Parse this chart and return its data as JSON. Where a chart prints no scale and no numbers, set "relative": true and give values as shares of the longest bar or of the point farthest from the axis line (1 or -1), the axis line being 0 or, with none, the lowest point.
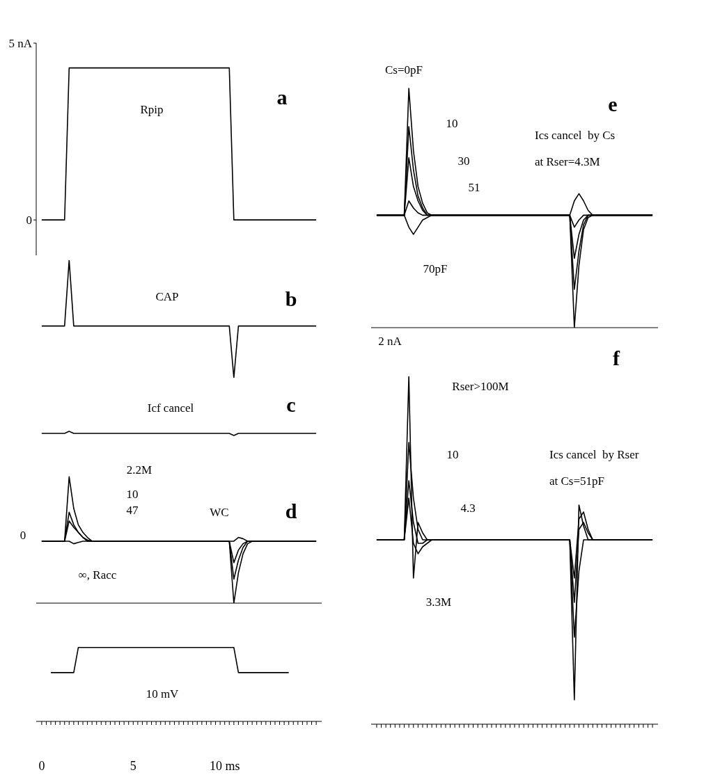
{
  "chart_data": [
    {
      "type": "line",
      "title": "a",
      "subtitle": "Rpip",
      "categories": [
        null,
        null,
        null,
        null,
        null,
        null,
        null,
        null,
        null,
        null,
        null,
        null,
        null,
        null,
        null,
        null,
        null,
        null,
        null,
        null,
        null,
        null,
        null,
        null,
        null,
        null,
        null,
        null,
        null,
        null,
        null,
        null,
        null,
        null,
        null,
        null,
        null,
        null,
        null,
        null,
        null,
        null,
        null,
        null,
        null,
        null,
        null,
        null,
        null,
        null,
        null,
        null,
        null,
        null,
        null,
        null,
        null,
        null,
        null,
        null,
        null
      ],
      "values": [
        0,
        0,
        0,
        0,
        0,
        0,
        4.3,
        4.3,
        4.3,
        4.3,
        4.3,
        4.3,
        4.3,
        4.3,
        4.3,
        4.3,
        4.3,
        4.3,
        4.3,
        4.3,
        4.3,
        4.3,
        4.3,
        4.3,
        4.3,
        4.3,
        4.3,
        4.3,
        4.3,
        4.3,
        4.3,
        4.3,
        4.3,
        4.3,
        4.3,
        4.3,
        4.3,
        4.3,
        4.3,
        4.3,
        4.3,
        4.3,
        0,
        0,
        0,
        0,
        0,
        0,
        0,
        0,
        0,
        0,
        0,
        0,
        0,
        0,
        0,
        0,
        0,
        0,
        0
      ],
      "color": "#000000",
      "ylim": [
        -1,
        5
      ],
      "yticks": [
        {
          "value": 0,
          "label": "0"
        },
        {
          "value": 5,
          "label": "5 nA"
        }
      ],
      "tick_labels": "y",
      "grid": false,
      "legend": false
    },
    {
      "type": "line",
      "title": "b",
      "subtitle": "CAP",
      "relative": true,
      "categories": [
        null,
        null,
        null,
        null,
        null,
        null,
        null,
        null,
        null,
        null,
        null,
        null,
        null,
        null,
        null,
        null,
        null,
        null,
        null,
        null,
        null,
        null,
        null,
        null,
        null,
        null,
        null,
        null,
        null,
        null,
        null,
        null,
        null,
        null,
        null,
        null,
        null,
        null,
        null,
        null,
        null,
        null,
        null,
        null,
        null,
        null,
        null,
        null,
        null,
        null,
        null,
        null,
        null,
        null,
        null,
        null,
        null,
        null,
        null,
        null,
        null
      ],
      "values": [
        0.44,
        0.44,
        0.44,
        0.44,
        0.44,
        0.44,
        1,
        0.44,
        0.44,
        0.44,
        0.44,
        0.44,
        0.44,
        0.44,
        0.44,
        0.44,
        0.44,
        0.44,
        0.44,
        0.44,
        0.44,
        0.44,
        0.44,
        0.44,
        0.44,
        0.44,
        0.44,
        0.44,
        0.44,
        0.44,
        0.44,
        0.44,
        0.44,
        0.44,
        0.44,
        0.44,
        0.44,
        0.44,
        0.44,
        0.44,
        0.44,
        0.44,
        0,
        0.44,
        0.44,
        0.44,
        0.44,
        0.44,
        0.44,
        0.44,
        0.44,
        0.44,
        0.44,
        0.44,
        0.44,
        0.44,
        0.44,
        0.44,
        0.44,
        0.44,
        0.44
      ],
      "color": "#000000",
      "tick_labels": false,
      "grid": false,
      "legend": false
    },
    {
      "type": "line",
      "title": "c",
      "subtitle": "Icf cancel",
      "relative": true,
      "categories": [
        null,
        null,
        null,
        null,
        null,
        null,
        null,
        null,
        null,
        null,
        null,
        null,
        null,
        null,
        null,
        null,
        null,
        null,
        null,
        null,
        null,
        null,
        null,
        null,
        null,
        null,
        null,
        null,
        null,
        null,
        null,
        null,
        null,
        null,
        null,
        null,
        null,
        null,
        null,
        null,
        null,
        null,
        null,
        null,
        null,
        null,
        null,
        null,
        null,
        null,
        null,
        null,
        null,
        null,
        null,
        null,
        null,
        null,
        null,
        null,
        null
      ],
      "values": [
        0.5,
        0.5,
        0.5,
        0.5,
        0.5,
        0.5,
        1,
        0.5,
        0.5,
        0.5,
        0.5,
        0.5,
        0.5,
        0.5,
        0.5,
        0.5,
        0.5,
        0.5,
        0.5,
        0.5,
        0.5,
        0.5,
        0.5,
        0.5,
        0.5,
        0.5,
        0.5,
        0.5,
        0.5,
        0.5,
        0.5,
        0.5,
        0.5,
        0.5,
        0.5,
        0.5,
        0.5,
        0.5,
        0.5,
        0.5,
        0.5,
        0.5,
        0,
        0.5,
        0.5,
        0.5,
        0.5,
        0.5,
        0.5,
        0.5,
        0.5,
        0.5,
        0.5,
        0.5,
        0.5,
        0.5,
        0.5,
        0.5,
        0.5,
        0.5,
        0.5
      ],
      "color": "#000000",
      "tick_labels": false,
      "grid": false,
      "legend": false
    },
    {
      "type": "line",
      "title": "d",
      "subtitle": "WC",
      "relative": true,
      "tick_labels": false,
      "grid": false,
      "legend": false,
      "categories": [
        null,
        null,
        null,
        null,
        null,
        null,
        null,
        null,
        null,
        null,
        null,
        null,
        null,
        null,
        null,
        null,
        null,
        null,
        null,
        null,
        null,
        null,
        null,
        null,
        null,
        null,
        null,
        null,
        null,
        null,
        null,
        null,
        null,
        null,
        null,
        null,
        null,
        null,
        null,
        null,
        null,
        null,
        null,
        null,
        null,
        null,
        null,
        null,
        null,
        null,
        null,
        null,
        null,
        null,
        null,
        null,
        null,
        null,
        null,
        null,
        null
      ],
      "series": [
        {
          "color": "#000000",
          "values": [
            0.49,
            0.49,
            0.49,
            0.49,
            0.49,
            0.49,
            1,
            0.75,
            0.62,
            0.56,
            0.52,
            0.49,
            0.49,
            0.49,
            0.49,
            0.49,
            0.49,
            0.49,
            0.49,
            0.49,
            0.49,
            0.49,
            0.49,
            0.49,
            0.49,
            0.49,
            0.49,
            0.49,
            0.49,
            0.49,
            0.49,
            0.49,
            0.49,
            0.49,
            0.49,
            0.49,
            0.49,
            0.49,
            0.49,
            0.49,
            0.49,
            0.49,
            0,
            0.24,
            0.39,
            0.47,
            0.49,
            0.49,
            0.49,
            0.49,
            0.49,
            0.49,
            0.49,
            0.49,
            0.49,
            0.49,
            0.49,
            0.49,
            0.49,
            0.49,
            0.49
          ]
        },
        {
          "color": "#000000",
          "values": [
            0.49,
            0.49,
            0.49,
            0.49,
            0.49,
            0.49,
            0.72,
            0.62,
            0.56,
            0.52,
            0.49,
            0.49,
            0.49,
            0.49,
            0.49,
            0.49,
            0.49,
            0.49,
            0.49,
            0.49,
            0.49,
            0.49,
            0.49,
            0.49,
            0.49,
            0.49,
            0.49,
            0.49,
            0.49,
            0.49,
            0.49,
            0.49,
            0.49,
            0.49,
            0.49,
            0.49,
            0.49,
            0.49,
            0.49,
            0.49,
            0.49,
            0.49,
            0.19,
            0.34,
            0.44,
            0.49,
            0.49,
            0.49,
            0.49,
            0.49,
            0.49,
            0.49,
            0.49,
            0.49,
            0.49,
            0.49,
            0.49,
            0.49,
            0.49,
            0.49,
            0.49
          ]
        },
        {
          "color": "#000000",
          "values": [
            0.49,
            0.49,
            0.49,
            0.49,
            0.49,
            0.49,
            0.65,
            0.6,
            0.56,
            0.52,
            0.5,
            0.49,
            0.49,
            0.49,
            0.49,
            0.49,
            0.49,
            0.49,
            0.49,
            0.49,
            0.49,
            0.49,
            0.49,
            0.49,
            0.49,
            0.49,
            0.49,
            0.49,
            0.49,
            0.49,
            0.49,
            0.49,
            0.49,
            0.49,
            0.49,
            0.49,
            0.49,
            0.49,
            0.49,
            0.49,
            0.49,
            0.49,
            0.32,
            0.42,
            0.47,
            0.49,
            0.49,
            0.49,
            0.49,
            0.49,
            0.49,
            0.49,
            0.49,
            0.49,
            0.49,
            0.49,
            0.49,
            0.49,
            0.49,
            0.49,
            0.49
          ]
        },
        {
          "color": "#000000",
          "values": [
            0.49,
            0.49,
            0.49,
            0.49,
            0.49,
            0.49,
            0.49,
            0.47,
            0.48,
            0.49,
            0.49,
            0.49,
            0.49,
            0.49,
            0.49,
            0.49,
            0.49,
            0.49,
            0.49,
            0.49,
            0.49,
            0.49,
            0.49,
            0.49,
            0.49,
            0.49,
            0.49,
            0.49,
            0.49,
            0.49,
            0.49,
            0.49,
            0.49,
            0.49,
            0.49,
            0.49,
            0.49,
            0.49,
            0.49,
            0.49,
            0.49,
            0.49,
            0.49,
            0.52,
            0.51,
            0.49,
            0.49,
            0.49,
            0.49,
            0.49,
            0.49,
            0.49,
            0.49,
            0.49,
            0.49,
            0.49,
            0.49,
            0.49,
            0.49,
            0.49,
            0.49
          ]
        }
      ],
      "annotations": [
        "0",
        "2.2M",
        "10",
        "47",
        "∞, Racc"
      ]
    },
    {
      "type": "line",
      "relative": true,
      "categories": [
        "0",
        null,
        null,
        null,
        null,
        null,
        null,
        null,
        null,
        null,
        null,
        null,
        null,
        null,
        null,
        null,
        null,
        null,
        null,
        null,
        "5",
        null,
        null,
        null,
        null,
        null,
        null,
        null,
        null,
        null,
        null,
        null,
        null,
        null,
        null,
        null,
        null,
        null,
        null,
        null,
        "10 ms",
        null,
        null,
        null,
        null,
        null,
        null,
        null,
        null,
        null,
        null,
        null,
        null,
        null,
        null,
        null,
        null,
        null,
        null,
        null,
        null
      ],
      "values": [
        null,
        null,
        0.66,
        0.66,
        0.66,
        0.66,
        0.66,
        0.66,
        1,
        1,
        1,
        1,
        1,
        1,
        1,
        1,
        1,
        1,
        1,
        1,
        1,
        1,
        1,
        1,
        1,
        1,
        1,
        1,
        1,
        1,
        1,
        1,
        1,
        1,
        1,
        1,
        1,
        1,
        1,
        1,
        1,
        1,
        1,
        0.66,
        0.66,
        0.66,
        0.66,
        0.66,
        0.66,
        0.66,
        0.66,
        0.66,
        0.66,
        0.66,
        0.66,
        null,
        null,
        null,
        null,
        null,
        null
      ],
      "color": "#000000",
      "tick_labels": "x",
      "grid": false,
      "legend": false,
      "annotations": [
        "10 mV"
      ]
    },
    {
      "type": "line",
      "title": "e",
      "relative": true,
      "tick_labels": false,
      "grid": false,
      "legend": false,
      "categories": [
        null,
        null,
        null,
        null,
        null,
        null,
        null,
        null,
        null,
        null,
        null,
        null,
        null,
        null,
        null,
        null,
        null,
        null,
        null,
        null,
        null,
        null,
        null,
        null,
        null,
        null,
        null,
        null,
        null,
        null,
        null,
        null,
        null,
        null,
        null,
        null,
        null,
        null,
        null,
        null,
        null,
        null,
        null,
        null,
        null,
        null,
        null,
        null,
        null,
        null,
        null,
        null,
        null,
        null,
        null,
        null,
        null,
        null,
        null,
        null,
        null
      ],
      "series": [
        {
          "color": "#000000",
          "values": [
            0.47,
            0.47,
            0.47,
            0.47,
            0.47,
            0.47,
            0.47,
            1,
            0.74,
            0.59,
            0.52,
            0.48,
            0.47,
            0.47,
            0.47,
            0.47,
            0.47,
            0.47,
            0.47,
            0.47,
            0.47,
            0.47,
            0.47,
            0.47,
            0.47,
            0.47,
            0.47,
            0.47,
            0.47,
            0.47,
            0.47,
            0.47,
            0.47,
            0.47,
            0.47,
            0.47,
            0.47,
            0.47,
            0.47,
            0.47,
            0.47,
            0.47,
            0.47,
            0,
            0.26,
            0.41,
            0.46,
            0.47,
            0.47,
            0.47,
            0.47,
            0.47,
            0.47,
            0.47,
            0.47,
            0.47,
            0.47,
            0.47,
            0.47,
            0.47,
            0.47
          ]
        },
        {
          "color": "#000000",
          "values": [
            0.47,
            0.47,
            0.47,
            0.47,
            0.47,
            0.47,
            0.47,
            0.84,
            0.66,
            0.55,
            0.5,
            0.47,
            0.47,
            0.47,
            0.47,
            0.47,
            0.47,
            0.47,
            0.47,
            0.47,
            0.47,
            0.47,
            0.47,
            0.47,
            0.47,
            0.47,
            0.47,
            0.47,
            0.47,
            0.47,
            0.47,
            0.47,
            0.47,
            0.47,
            0.47,
            0.47,
            0.47,
            0.47,
            0.47,
            0.47,
            0.47,
            0.47,
            0.47,
            0.16,
            0.32,
            0.43,
            0.47,
            0.47,
            0.47,
            0.47,
            0.47,
            0.47,
            0.47,
            0.47,
            0.47,
            0.47,
            0.47,
            0.47,
            0.47,
            0.47,
            0.47
          ]
        },
        {
          "color": "#000000",
          "values": [
            0.47,
            0.47,
            0.47,
            0.47,
            0.47,
            0.47,
            0.47,
            0.71,
            0.59,
            0.53,
            0.49,
            0.47,
            0.47,
            0.47,
            0.47,
            0.47,
            0.47,
            0.47,
            0.47,
            0.47,
            0.47,
            0.47,
            0.47,
            0.47,
            0.47,
            0.47,
            0.47,
            0.47,
            0.47,
            0.47,
            0.47,
            0.47,
            0.47,
            0.47,
            0.47,
            0.47,
            0.47,
            0.47,
            0.47,
            0.47,
            0.47,
            0.47,
            0.47,
            0.29,
            0.39,
            0.45,
            0.47,
            0.47,
            0.47,
            0.47,
            0.47,
            0.47,
            0.47,
            0.47,
            0.47,
            0.47,
            0.47,
            0.47,
            0.47,
            0.47,
            0.47
          ]
        },
        {
          "color": "#000000",
          "values": [
            0.47,
            0.47,
            0.47,
            0.47,
            0.47,
            0.47,
            0.47,
            0.53,
            0.5,
            0.48,
            0.47,
            0.47,
            0.47,
            0.47,
            0.47,
            0.47,
            0.47,
            0.47,
            0.47,
            0.47,
            0.47,
            0.47,
            0.47,
            0.47,
            0.47,
            0.47,
            0.47,
            0.47,
            0.47,
            0.47,
            0.47,
            0.47,
            0.47,
            0.47,
            0.47,
            0.47,
            0.47,
            0.47,
            0.47,
            0.47,
            0.47,
            0.47,
            0.47,
            0.42,
            0.45,
            0.47,
            0.47,
            0.47,
            0.47,
            0.47,
            0.47,
            0.47,
            0.47,
            0.47,
            0.47,
            0.47,
            0.47,
            0.47,
            0.47,
            0.47,
            0.47
          ]
        },
        {
          "color": "#000000",
          "values": [
            0.47,
            0.47,
            0.47,
            0.47,
            0.47,
            0.47,
            0.47,
            0.42,
            0.39,
            0.42,
            0.45,
            0.46,
            0.47,
            0.47,
            0.47,
            0.47,
            0.47,
            0.47,
            0.47,
            0.47,
            0.47,
            0.47,
            0.47,
            0.47,
            0.47,
            0.47,
            0.47,
            0.47,
            0.47,
            0.47,
            0.47,
            0.47,
            0.47,
            0.47,
            0.47,
            0.47,
            0.47,
            0.47,
            0.47,
            0.47,
            0.47,
            0.47,
            0.47,
            0.53,
            0.56,
            0.53,
            0.49,
            0.47,
            0.47,
            0.47,
            0.47,
            0.47,
            0.47,
            0.47,
            0.47,
            0.47,
            0.47,
            0.47,
            0.47,
            0.47,
            0.47
          ]
        }
      ],
      "annotations": [
        "Ics cancel  by Cs",
        "at Rser=4.3M",
        "Cs=0pF",
        "10",
        "30",
        "51",
        "70pF"
      ]
    },
    {
      "type": "line",
      "title": "f",
      "ylabel": "2 nA",
      "relative": true,
      "tick_labels": false,
      "grid": false,
      "legend": false,
      "categories": [
        null,
        null,
        null,
        null,
        null,
        null,
        null,
        null,
        null,
        null,
        null,
        null,
        null,
        null,
        null,
        null,
        null,
        null,
        null,
        null,
        null,
        null,
        null,
        null,
        null,
        null,
        null,
        null,
        null,
        null,
        null,
        null,
        null,
        null,
        null,
        null,
        null,
        null,
        null,
        null,
        null,
        null,
        null,
        null,
        null,
        null,
        null,
        null,
        null,
        null,
        null,
        null,
        null,
        null,
        null,
        null,
        null,
        null,
        null,
        null,
        null
      ],
      "series": [
        {
          "color": "#000000",
          "values": [
            0.53,
            0.53,
            0.53,
            0.53,
            0.53,
            0.53,
            0.53,
            1,
            0.42,
            0.58,
            0.55,
            0.53,
            0.53,
            0.53,
            0.53,
            0.53,
            0.53,
            0.53,
            0.53,
            0.53,
            0.53,
            0.53,
            0.53,
            0.53,
            0.53,
            0.53,
            0.53,
            0.53,
            0.53,
            0.53,
            0.53,
            0.53,
            0.53,
            0.53,
            0.53,
            0.53,
            0.53,
            0.53,
            0.53,
            0.53,
            0.53,
            0.53,
            0.53,
            0.07,
            0.63,
            0.57,
            0.53,
            0.53,
            0.53,
            0.53,
            0.53,
            0.53,
            0.53,
            0.53,
            0.53,
            0.53,
            0.53,
            0.53,
            0.53,
            0.53,
            0.53
          ]
        },
        {
          "color": "#000000",
          "values": [
            0.53,
            0.53,
            0.53,
            0.53,
            0.53,
            0.53,
            0.53,
            0.81,
            0.65,
            0.56,
            0.53,
            0.53,
            0.53,
            0.53,
            0.53,
            0.53,
            0.53,
            0.53,
            0.53,
            0.53,
            0.53,
            0.53,
            0.53,
            0.53,
            0.53,
            0.53,
            0.53,
            0.53,
            0.53,
            0.53,
            0.53,
            0.53,
            0.53,
            0.53,
            0.53,
            0.53,
            0.53,
            0.53,
            0.53,
            0.53,
            0.53,
            0.53,
            0.53,
            0.25,
            0.44,
            0.53,
            0.53,
            0.53,
            0.53,
            0.53,
            0.53,
            0.53,
            0.53,
            0.53,
            0.53,
            0.53,
            0.53,
            0.53,
            0.53,
            0.53,
            0.53
          ]
        },
        {
          "color": "#000000",
          "values": [
            0.53,
            0.53,
            0.53,
            0.53,
            0.53,
            0.53,
            0.53,
            0.7,
            0.58,
            0.52,
            0.52,
            0.53,
            0.53,
            0.53,
            0.53,
            0.53,
            0.53,
            0.53,
            0.53,
            0.53,
            0.53,
            0.53,
            0.53,
            0.53,
            0.53,
            0.53,
            0.53,
            0.53,
            0.53,
            0.53,
            0.53,
            0.53,
            0.53,
            0.53,
            0.53,
            0.53,
            0.53,
            0.53,
            0.53,
            0.53,
            0.53,
            0.53,
            0.53,
            0.35,
            0.56,
            0.58,
            0.55,
            0.53,
            0.53,
            0.53,
            0.53,
            0.53,
            0.53,
            0.53,
            0.53,
            0.53,
            0.53,
            0.53,
            0.53,
            0.53,
            0.53
          ]
        },
        {
          "color": "#000000",
          "values": [
            0.53,
            0.53,
            0.53,
            0.53,
            0.53,
            0.53,
            0.53,
            0.65,
            0.52,
            0.49,
            0.51,
            0.52,
            0.53,
            0.53,
            0.53,
            0.53,
            0.53,
            0.53,
            0.53,
            0.53,
            0.53,
            0.53,
            0.53,
            0.53,
            0.53,
            0.53,
            0.53,
            0.53,
            0.53,
            0.53,
            0.53,
            0.53,
            0.53,
            0.53,
            0.53,
            0.53,
            0.53,
            0.53,
            0.53,
            0.53,
            0.53,
            0.53,
            0.53,
            0.42,
            0.59,
            0.61,
            0.56,
            0.53,
            0.53,
            0.53,
            0.53,
            0.53,
            0.53,
            0.53,
            0.53,
            0.53,
            0.53,
            0.53,
            0.53,
            0.53,
            0.53
          ]
        }
      ],
      "annotations": [
        "Ics cancel  by Rser",
        "at Cs=51pF",
        "Rser>100M",
        "10",
        "4.3",
        "3.3M"
      ]
    }
  ]
}
